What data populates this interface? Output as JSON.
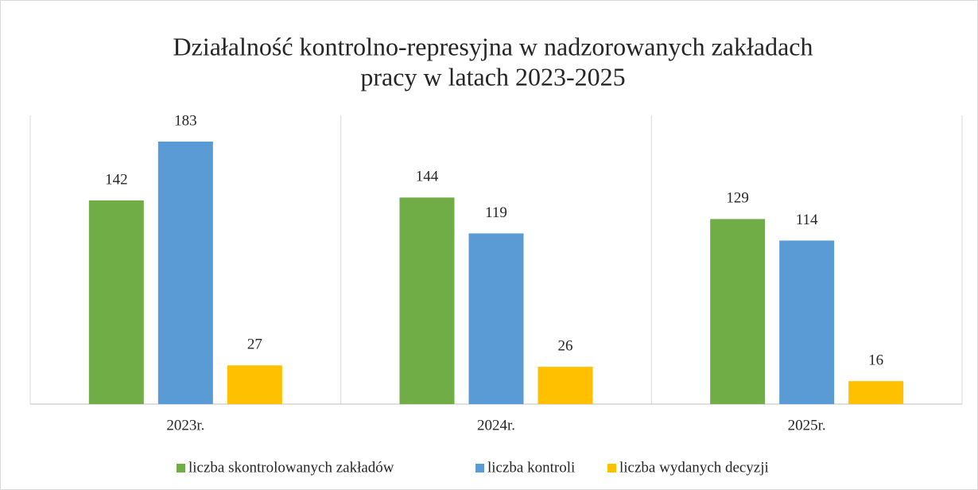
{
  "chart_data": {
    "type": "bar",
    "title": "Działalność kontrolno-represyjna w nadzorowanych zakładach",
    "subtitle": "pracy w latach 2023-2025",
    "categories": [
      "2023r.",
      "2024r.",
      "2025r."
    ],
    "series": [
      {
        "name": "liczba skontrolowanych zakładów",
        "color": "#70ad47",
        "values": [
          142,
          144,
          129
        ]
      },
      {
        "name": "liczba kontroli",
        "color": "#5b9bd5",
        "values": [
          183,
          119,
          114
        ]
      },
      {
        "name": "liczba wydanych decyzji",
        "color": "#ffc000",
        "values": [
          27,
          26,
          16
        ]
      }
    ],
    "legend": "bottom"
  }
}
